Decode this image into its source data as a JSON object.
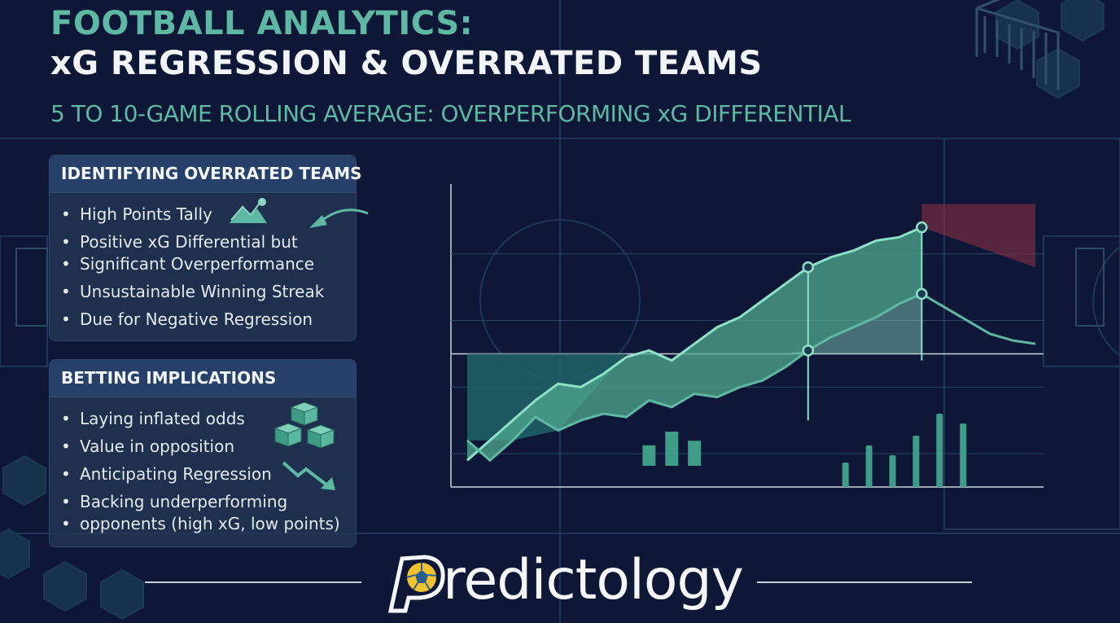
{
  "header": {
    "title_line1": "FOOTBALL ANALYTICS:",
    "title_line2": "xG REGRESSION & OVERRATED TEAMS",
    "subtitle": "5 TO 10-GAME ROLLING AVERAGE: OVERPERFORMING xG DIFFERENTIAL"
  },
  "panels": [
    {
      "heading": "IDENTIFYING OVERRATED TEAMS",
      "items": [
        "High Points Tally",
        "Positive xG Differential but",
        "Significant Overperformance",
        "Unsustainable Winning Streak",
        "Due for Negative Regression"
      ]
    },
    {
      "heading": "BETTING IMPLICATIONS",
      "items": [
        "Laying inflated odds",
        "Value in opposition",
        "Anticipating Regression",
        "Backing underperforming",
        "opponents (high xG, low points)"
      ]
    }
  ],
  "icons": {
    "mountain": "mountain-chart-icon",
    "curved_arrow": "curved-arrow-icon",
    "cubes": "cubes-icon",
    "down_trend": "down-trend-arrow-icon",
    "logo_ball": "football-icon"
  },
  "colors": {
    "background": "#0e1836",
    "accent": "#5fb8a4",
    "teal_fill": "#4fa890",
    "red_zone": "#8a2f45"
  },
  "brand": {
    "logo_text": "redictology",
    "logo_letter": "P"
  },
  "chart_data": {
    "type": "area",
    "title": "",
    "xlabel": "",
    "ylabel": "",
    "grid": true,
    "x": [
      0,
      1,
      2,
      3,
      4,
      5,
      6,
      7,
      8,
      9,
      10,
      11,
      12,
      13,
      14,
      15,
      16,
      17,
      18,
      19,
      20,
      21,
      22,
      23,
      24,
      25
    ],
    "series": [
      {
        "values": [
          -3.2,
          -2.6,
          -2.0,
          -1.4,
          -0.9,
          -1.0,
          -0.6,
          -0.1,
          0.1,
          -0.2,
          0.3,
          0.8,
          1.1,
          1.6,
          2.1,
          2.6,
          2.9,
          3.1,
          3.4,
          3.5,
          3.8,
          null,
          null,
          null,
          null,
          null
        ]
      },
      {
        "values": [
          -2.6,
          -3.2,
          -2.6,
          -1.9,
          -2.3,
          -2.0,
          -1.8,
          -1.9,
          -1.4,
          -1.6,
          -1.2,
          -1.3,
          -1.0,
          -0.8,
          -0.4,
          0.1,
          0.5,
          0.8,
          1.1,
          1.5,
          1.8,
          1.4,
          1.0,
          0.6,
          0.4,
          0.3
        ]
      }
    ],
    "bars": [
      {
        "values": [
          0.9,
          1.5,
          1.1
        ]
      },
      {
        "values": [
          1.0,
          1.7,
          1.3,
          2.1,
          3.0,
          2.6
        ]
      }
    ]
  }
}
